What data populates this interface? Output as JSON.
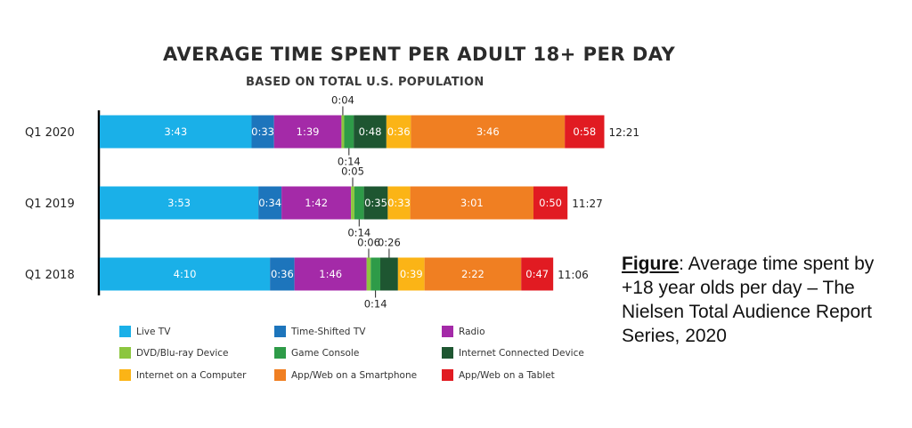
{
  "caption": {
    "heading": "Figure",
    "text": ": Average time spent by +18 year olds per day – The Nielsen Total Audience Report Series, 2020"
  },
  "chart_data": {
    "type": "bar",
    "orientation": "horizontal",
    "stacked": true,
    "title": "AVERAGE TIME SPENT PER ADULT 18+ PER DAY",
    "subtitle": "BASED ON TOTAL U.S. POPULATION",
    "grid": false,
    "legend_position": "bottom",
    "categories": [
      "Q1 2020",
      "Q1 2019",
      "Q1 2018"
    ],
    "totals": [
      "12:21",
      "11:27",
      "11:06"
    ],
    "series": [
      {
        "name": "Live TV",
        "color": "#1ab0e8",
        "values": [
          223,
          233,
          250
        ],
        "labels": [
          "3:43",
          "3:53",
          "4:10"
        ]
      },
      {
        "name": "Time-Shifted TV",
        "color": "#1d75bc",
        "values": [
          33,
          34,
          36
        ],
        "labels": [
          "0:33",
          "0:34",
          "0:36"
        ]
      },
      {
        "name": "Radio",
        "color": "#a42aa8",
        "values": [
          99,
          102,
          106
        ],
        "labels": [
          "1:39",
          "1:42",
          "1:46"
        ]
      },
      {
        "name": "DVD/Blu-ray Device",
        "color": "#8cc63f",
        "values": [
          4,
          5,
          6
        ],
        "labels": [
          "0:04",
          "0:05",
          "0:06"
        ]
      },
      {
        "name": "Game Console",
        "color": "#2e9b48",
        "values": [
          14,
          14,
          14
        ],
        "labels": [
          "0:14",
          "0:14",
          "0:14"
        ]
      },
      {
        "name": "Internet Connected Device",
        "color": "#1e5631",
        "values": [
          48,
          35,
          26
        ],
        "labels": [
          "0:48",
          "0:35",
          "0:26"
        ]
      },
      {
        "name": "Internet on a Computer",
        "color": "#fbb416",
        "values": [
          36,
          33,
          39
        ],
        "labels": [
          "0:36",
          "0:33",
          "0:39"
        ]
      },
      {
        "name": "App/Web on a Smartphone",
        "color": "#f07f22",
        "values": [
          226,
          181,
          142
        ],
        "labels": [
          "3:46",
          "3:01",
          "2:22"
        ]
      },
      {
        "name": "App/Web on a Tablet",
        "color": "#e11b22",
        "values": [
          58,
          50,
          47
        ],
        "labels": [
          "0:58",
          "0:50",
          "0:47"
        ]
      }
    ]
  }
}
